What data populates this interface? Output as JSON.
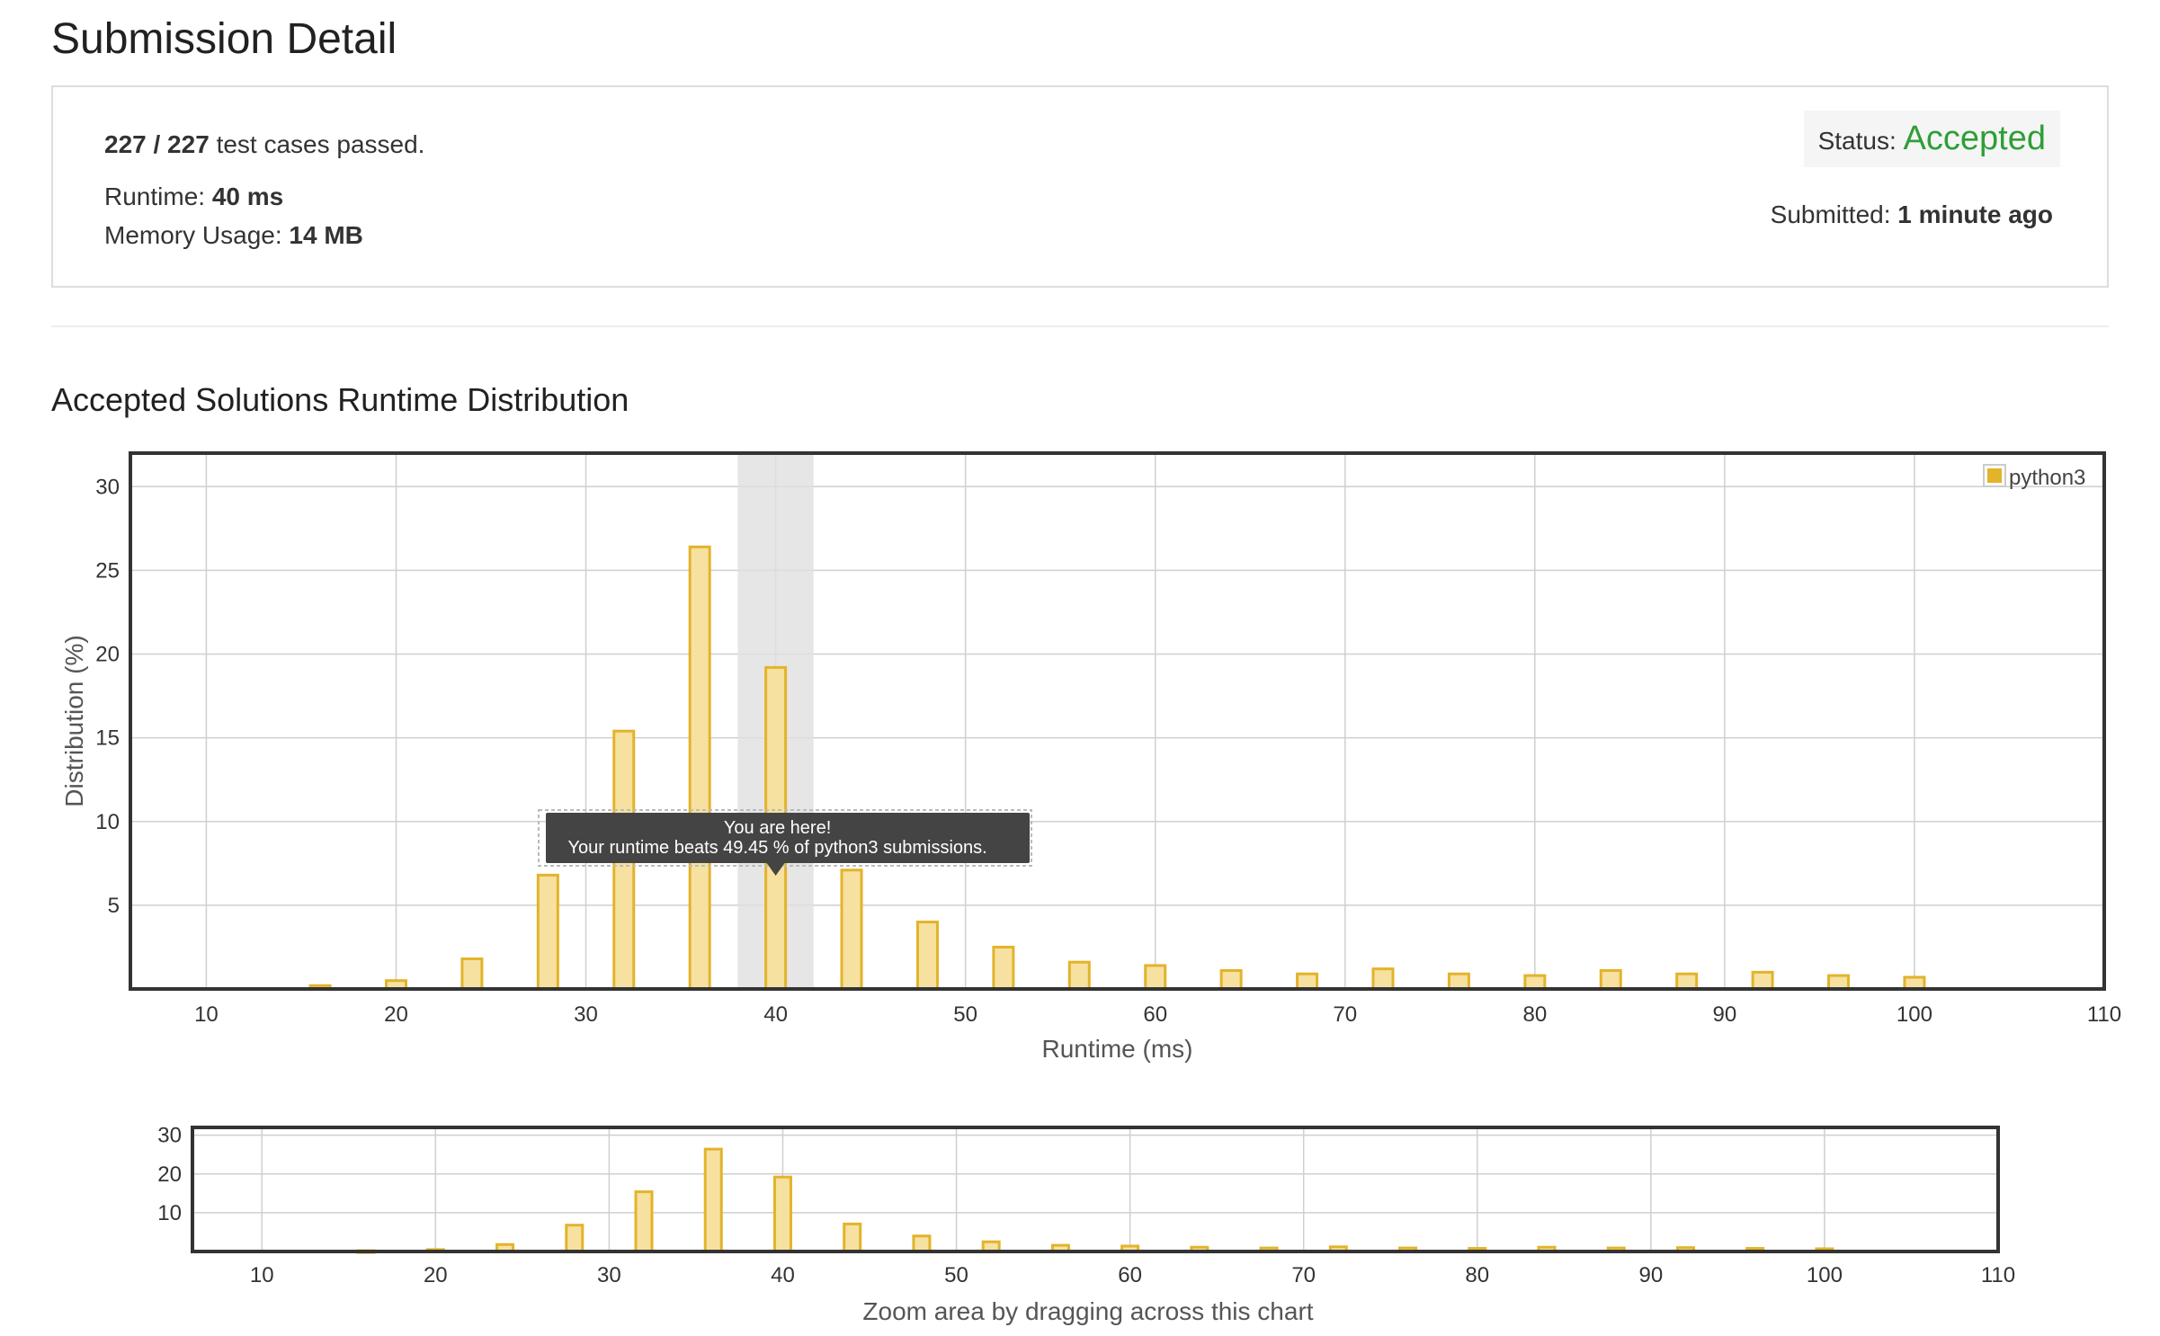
{
  "page": {
    "title": "Submission Detail",
    "tests_passed": "227 / 227",
    "tests_suffix": "test cases passed.",
    "runtime_label": "Runtime:",
    "runtime_value": "40 ms",
    "memory_label": "Memory Usage:",
    "memory_value": "14 MB",
    "status_label": "Status:",
    "status_value": "Accepted",
    "submitted_label": "Submitted:",
    "submitted_value": "1 minute ago",
    "section_title": "Accepted Solutions Runtime Distribution",
    "tooltip_line1": "You are here!",
    "tooltip_line2": "Your runtime beats 49.45 % of python3 submissions.",
    "zoom_hint": "Zoom area by dragging across this chart"
  },
  "colors": {
    "accepted": "#2e9e37",
    "bar_fill": "#f6e1a1",
    "bar_stroke": "#e3b32a",
    "legend_swatch": "#e3b32a",
    "highlight_band": "#e0e0e0",
    "tooltip_bg": "#444444"
  },
  "chart_data": [
    {
      "type": "bar",
      "xlabel": "Runtime (ms)",
      "ylabel": "Distribution (%)",
      "xlim": [
        6,
        110
      ],
      "ylim": [
        0,
        32
      ],
      "xticks": [
        10,
        20,
        30,
        40,
        50,
        60,
        70,
        80,
        90,
        100,
        110
      ],
      "yticks": [
        5,
        10,
        15,
        20,
        25,
        30
      ],
      "grid": true,
      "legend_position": "top-right",
      "highlight_range": [
        38,
        42
      ],
      "series": [
        {
          "name": "python3",
          "x": [
            16,
            20,
            24,
            28,
            32,
            36,
            40,
            44,
            48,
            52,
            56,
            60,
            64,
            68,
            72,
            76,
            80,
            84,
            88,
            92,
            96,
            100
          ],
          "values": [
            0.2,
            0.5,
            1.8,
            6.8,
            15.4,
            26.4,
            19.2,
            7.1,
            4.0,
            2.5,
            1.6,
            1.4,
            1.1,
            0.9,
            1.2,
            0.9,
            0.8,
            1.1,
            0.9,
            1.0,
            0.8,
            0.7
          ]
        }
      ]
    },
    {
      "type": "bar",
      "xlim": [
        6,
        110
      ],
      "ylim": [
        0,
        32
      ],
      "xticks": [
        10,
        20,
        30,
        40,
        50,
        60,
        70,
        80,
        90,
        100,
        110
      ],
      "yticks": [
        10,
        20,
        30
      ],
      "grid": true,
      "series": [
        {
          "x": [
            16,
            20,
            24,
            28,
            32,
            36,
            40,
            44,
            48,
            52,
            56,
            60,
            64,
            68,
            72,
            76,
            80,
            84,
            88,
            92,
            96,
            100
          ],
          "values": [
            0.2,
            0.5,
            1.8,
            6.8,
            15.4,
            26.4,
            19.2,
            7.1,
            4.0,
            2.5,
            1.6,
            1.4,
            1.1,
            0.9,
            1.2,
            0.9,
            0.8,
            1.1,
            0.9,
            1.0,
            0.8,
            0.7
          ]
        }
      ]
    }
  ]
}
